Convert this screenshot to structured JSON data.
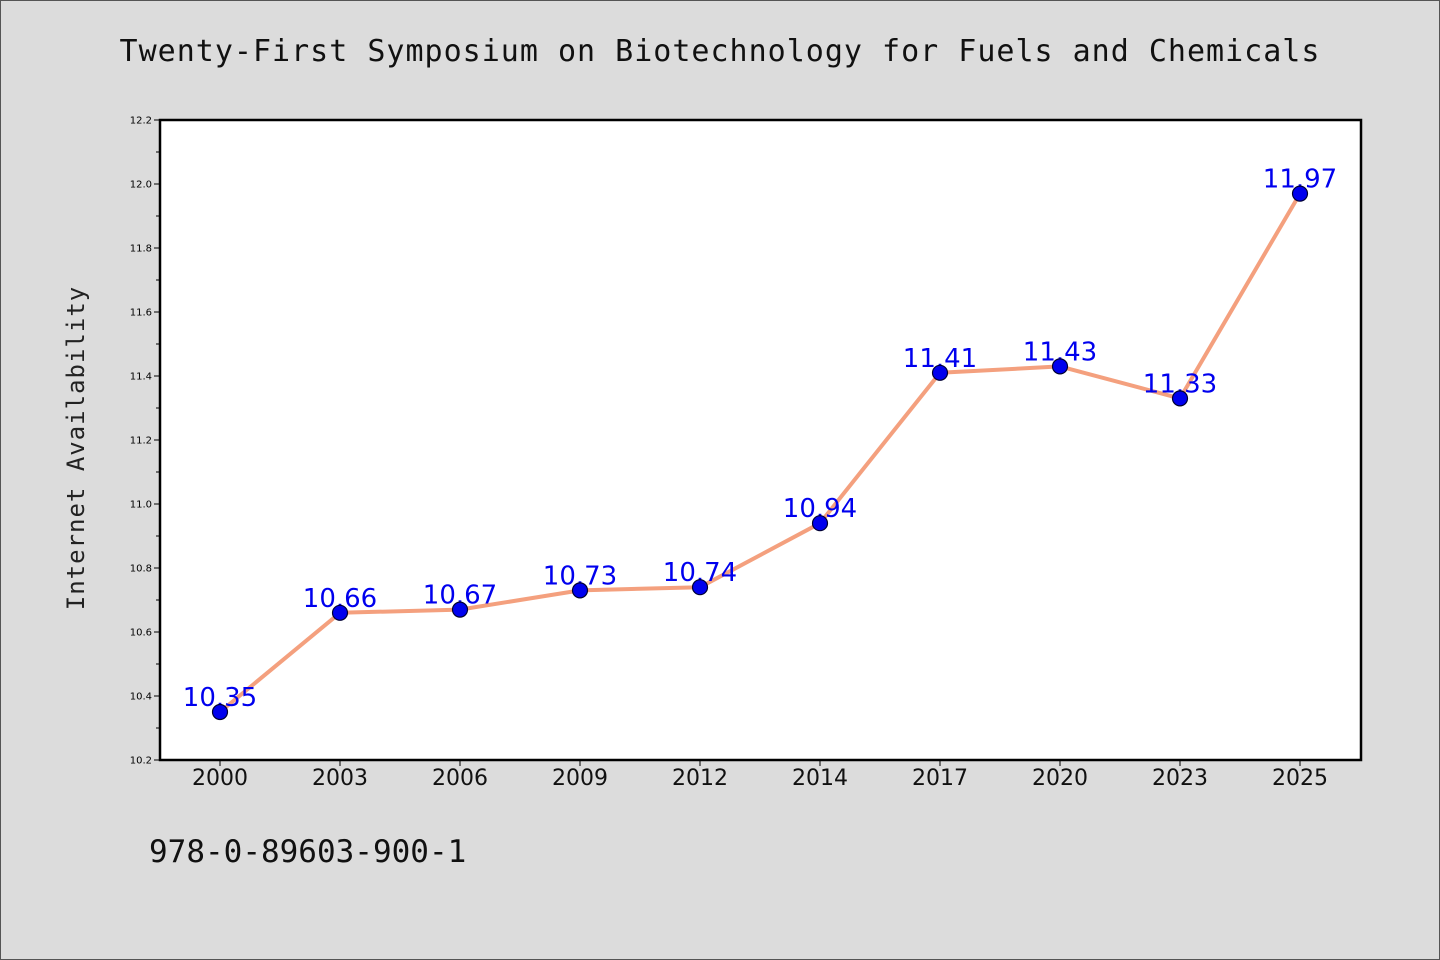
{
  "chart_data": {
    "type": "line",
    "title": "Twenty-First Symposium on Biotechnology for Fuels and Chemicals",
    "xlabel": "",
    "ylabel": "Internet Availability",
    "categories": [
      "2000",
      "2003",
      "2006",
      "2009",
      "2012",
      "2014",
      "2017",
      "2020",
      "2023",
      "2025"
    ],
    "series": [
      {
        "values": [
          10.35,
          10.66,
          10.67,
          10.73,
          10.74,
          10.94,
          11.41,
          11.43,
          11.33,
          11.97
        ],
        "data_labels": [
          "10.35",
          "10.66",
          "10.67",
          "10.73",
          "10.74",
          "10.94",
          "11.41",
          "11.43",
          "11.33",
          "11.97"
        ],
        "line_color": "#f4a07e",
        "marker_color": "#0000ee",
        "label_color": "#0000ee"
      }
    ],
    "ylim": [
      10.2,
      12.2
    ],
    "yticks": [
      "10.2",
      "10.4",
      "10.6",
      "10.8",
      "11.0",
      "11.2",
      "11.4",
      "11.6",
      "11.8",
      "12.0",
      "12.2"
    ],
    "grid": false,
    "legend": "none"
  },
  "footer": {
    "isbn": "978-0-89603-900-1"
  },
  "colors": {
    "background": "#dcdcdc",
    "plot_background": "#ffffff",
    "axis": "#000000"
  }
}
